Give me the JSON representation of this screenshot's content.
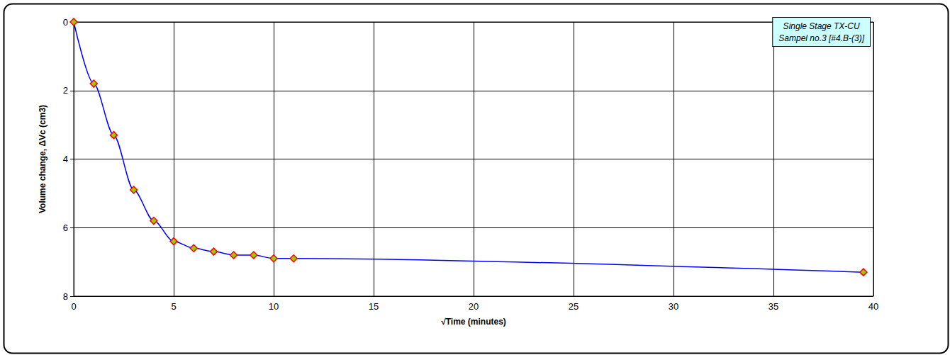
{
  "chart_data": {
    "type": "line",
    "annotations": [
      "Single Stage TX-CU",
      "Sampel no.3 [#4.B-(3)]"
    ],
    "x_label": "√Time (minutes)",
    "y_label": "Volume change, ΔVc (cm3)",
    "x": [
      0,
      1,
      2,
      3,
      4,
      5,
      6,
      7,
      8,
      9,
      10,
      11,
      39.5
    ],
    "values": [
      0,
      1.8,
      3.3,
      4.9,
      5.8,
      6.4,
      6.6,
      6.7,
      6.8,
      6.8,
      6.9,
      6.9,
      7.3
    ],
    "color": "#0000ff",
    "marker": "diamond",
    "line_style": "solid",
    "xlim": [
      0,
      40
    ],
    "xticks": [
      0,
      5,
      10,
      15,
      20,
      25,
      30,
      35,
      40
    ],
    "ylim": [
      0,
      8
    ],
    "yticks": [
      0,
      2,
      4,
      6,
      8
    ],
    "inverted_y": true,
    "grid": true
  }
}
